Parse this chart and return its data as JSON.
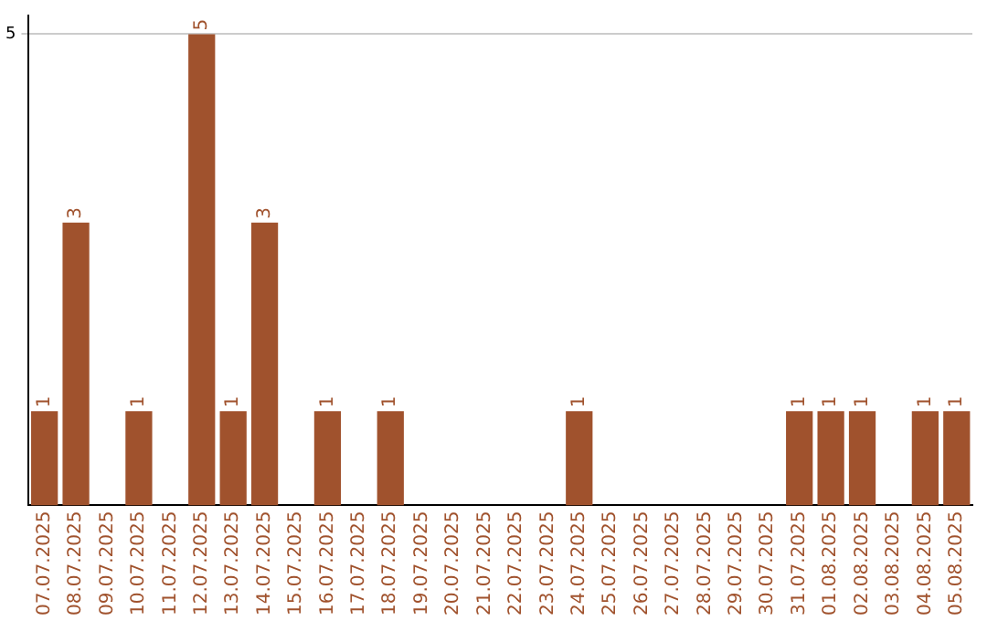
{
  "chart_data": {
    "type": "bar",
    "categories": [
      "07.07.2025",
      "08.07.2025",
      "09.07.2025",
      "10.07.2025",
      "11.07.2025",
      "12.07.2025",
      "13.07.2025",
      "14.07.2025",
      "15.07.2025",
      "16.07.2025",
      "17.07.2025",
      "18.07.2025",
      "19.07.2025",
      "20.07.2025",
      "21.07.2025",
      "22.07.2025",
      "23.07.2025",
      "24.07.2025",
      "25.07.2025",
      "26.07.2025",
      "27.07.2025",
      "28.07.2025",
      "29.07.2025",
      "30.07.2025",
      "31.07.2025",
      "01.08.2025",
      "02.08.2025",
      "03.08.2025",
      "04.08.2025",
      "05.08.2025"
    ],
    "values": [
      1,
      3,
      0,
      1,
      0,
      5,
      1,
      3,
      0,
      1,
      0,
      1,
      0,
      0,
      0,
      0,
      0,
      1,
      0,
      0,
      0,
      0,
      0,
      0,
      1,
      1,
      1,
      0,
      1,
      1
    ],
    "value_labels": [
      "1",
      "3",
      null,
      "1",
      null,
      "5",
      "1",
      "3",
      null,
      "1",
      null,
      "1",
      null,
      null,
      null,
      null,
      null,
      "1",
      null,
      null,
      null,
      null,
      null,
      null,
      "1",
      "1",
      "1",
      null,
      "1",
      "1"
    ],
    "color": "#a0522d",
    "ylim": [
      0,
      5.2
    ],
    "yticks": [
      5
    ],
    "grid": "y",
    "legend": false
  }
}
